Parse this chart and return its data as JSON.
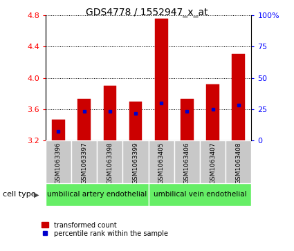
{
  "title": "GDS4778 / 1552947_x_at",
  "samples": [
    "GSM1063396",
    "GSM1063397",
    "GSM1063398",
    "GSM1063399",
    "GSM1063405",
    "GSM1063406",
    "GSM1063407",
    "GSM1063408"
  ],
  "bar_bottoms": [
    3.2,
    3.2,
    3.2,
    3.2,
    3.2,
    3.2,
    3.2,
    3.2
  ],
  "bar_tops": [
    3.47,
    3.73,
    3.9,
    3.7,
    4.75,
    3.73,
    3.92,
    4.3
  ],
  "percentile_values": [
    3.32,
    3.57,
    3.57,
    3.55,
    3.68,
    3.57,
    3.6,
    3.65
  ],
  "bar_color": "#cc0000",
  "percentile_color": "#0000cc",
  "ylim": [
    3.2,
    4.8
  ],
  "yticks": [
    3.2,
    3.6,
    4.0,
    4.4,
    4.8
  ],
  "right_ytick_vals": [
    3.2,
    3.6,
    4.0,
    4.4,
    4.8
  ],
  "right_yticklabels": [
    "0",
    "25",
    "50",
    "75",
    "100%"
  ],
  "group1_label": "umbilical artery endothelial",
  "group2_label": "umbilical vein endothelial",
  "group1_indices": [
    0,
    1,
    2,
    3
  ],
  "group2_indices": [
    4,
    5,
    6,
    7
  ],
  "cell_type_label": "cell type",
  "legend_red": "transformed count",
  "legend_blue": "percentile rank within the sample",
  "bg_color": "#ffffff",
  "panel_color": "#c8c8c8",
  "group_bg": "#66ee66",
  "bar_width": 0.5
}
